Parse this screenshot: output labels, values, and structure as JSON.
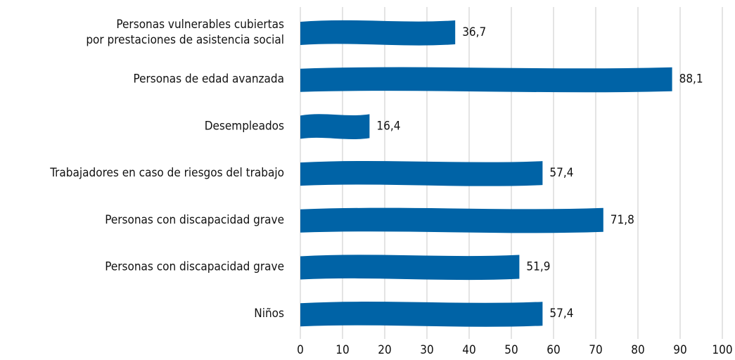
{
  "chart_data": {
    "type": "bar",
    "orientation": "horizontal",
    "categories": [
      "Personas vulnerables cubiertas\npor prestaciones de asistencia social",
      "Personas de edad avanzada",
      "Desempleados",
      "Trabajadores en caso de riesgos del trabajo",
      "Personas con discapacidad grave",
      "Personas con discapacidad grave",
      "Niños"
    ],
    "values": [
      36.7,
      88.1,
      16.4,
      57.4,
      71.8,
      51.9,
      57.4
    ],
    "value_labels": [
      "36,7",
      "88,1",
      "16,4",
      "57,4",
      "71,8",
      "51,9",
      "57,4"
    ],
    "color": "#0063a6",
    "xlim": [
      0,
      100
    ],
    "xticks": [
      0,
      10,
      20,
      30,
      40,
      50,
      60,
      70,
      80,
      90,
      100
    ],
    "grid": true
  }
}
